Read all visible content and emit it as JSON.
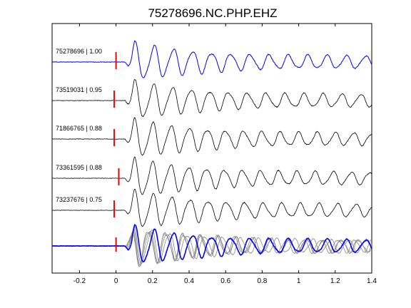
{
  "figure": {
    "title": "75278696.NC.PHP.EHZ"
  },
  "colors": {
    "template": "#0000ff",
    "match": "#000000",
    "stack_match": "#888888",
    "pick": "#ff0000",
    "axes": "#000000"
  },
  "chart_data": {
    "type": "line",
    "title": "75278696.NC.PHP.EHZ",
    "xlabel": "",
    "ylabel": "",
    "xlim": [
      -0.35,
      1.4
    ],
    "xticks": [
      -0.2,
      0,
      0.2,
      0.4,
      0.6,
      0.8,
      1,
      1.2,
      1.4
    ],
    "xtick_labels": [
      "-0.2",
      "0",
      "0.2",
      "0.4",
      "0.6",
      "0.8",
      "1",
      "1.2",
      "1.4"
    ],
    "grid": false,
    "traces": [
      {
        "event_id": "75278696",
        "cc": "1.00",
        "label": "75278696 | 1.00",
        "pick_time": 0.0,
        "color": "#0000ff",
        "freq": 9.5,
        "seed": 1
      },
      {
        "event_id": "73519031",
        "cc": "0.95",
        "label": "73519031 | 0.95",
        "pick_time": -0.01,
        "color": "#000000",
        "freq": 9.7,
        "seed": 2
      },
      {
        "event_id": "71866765",
        "cc": "0.88",
        "label": "71866765 | 0.88",
        "pick_time": -0.01,
        "color": "#000000",
        "freq": 10.0,
        "seed": 3
      },
      {
        "event_id": "73361595",
        "cc": "0.88",
        "label": "73361595 | 0.88",
        "pick_time": 0.015,
        "color": "#000000",
        "freq": 10.1,
        "seed": 4
      },
      {
        "event_id": "73237676",
        "cc": "0.75",
        "label": "73237676 | 0.75",
        "pick_time": -0.01,
        "color": "#000000",
        "freq": 9.9,
        "seed": 5
      }
    ],
    "stack": {
      "pick_time": 0.0
    }
  }
}
